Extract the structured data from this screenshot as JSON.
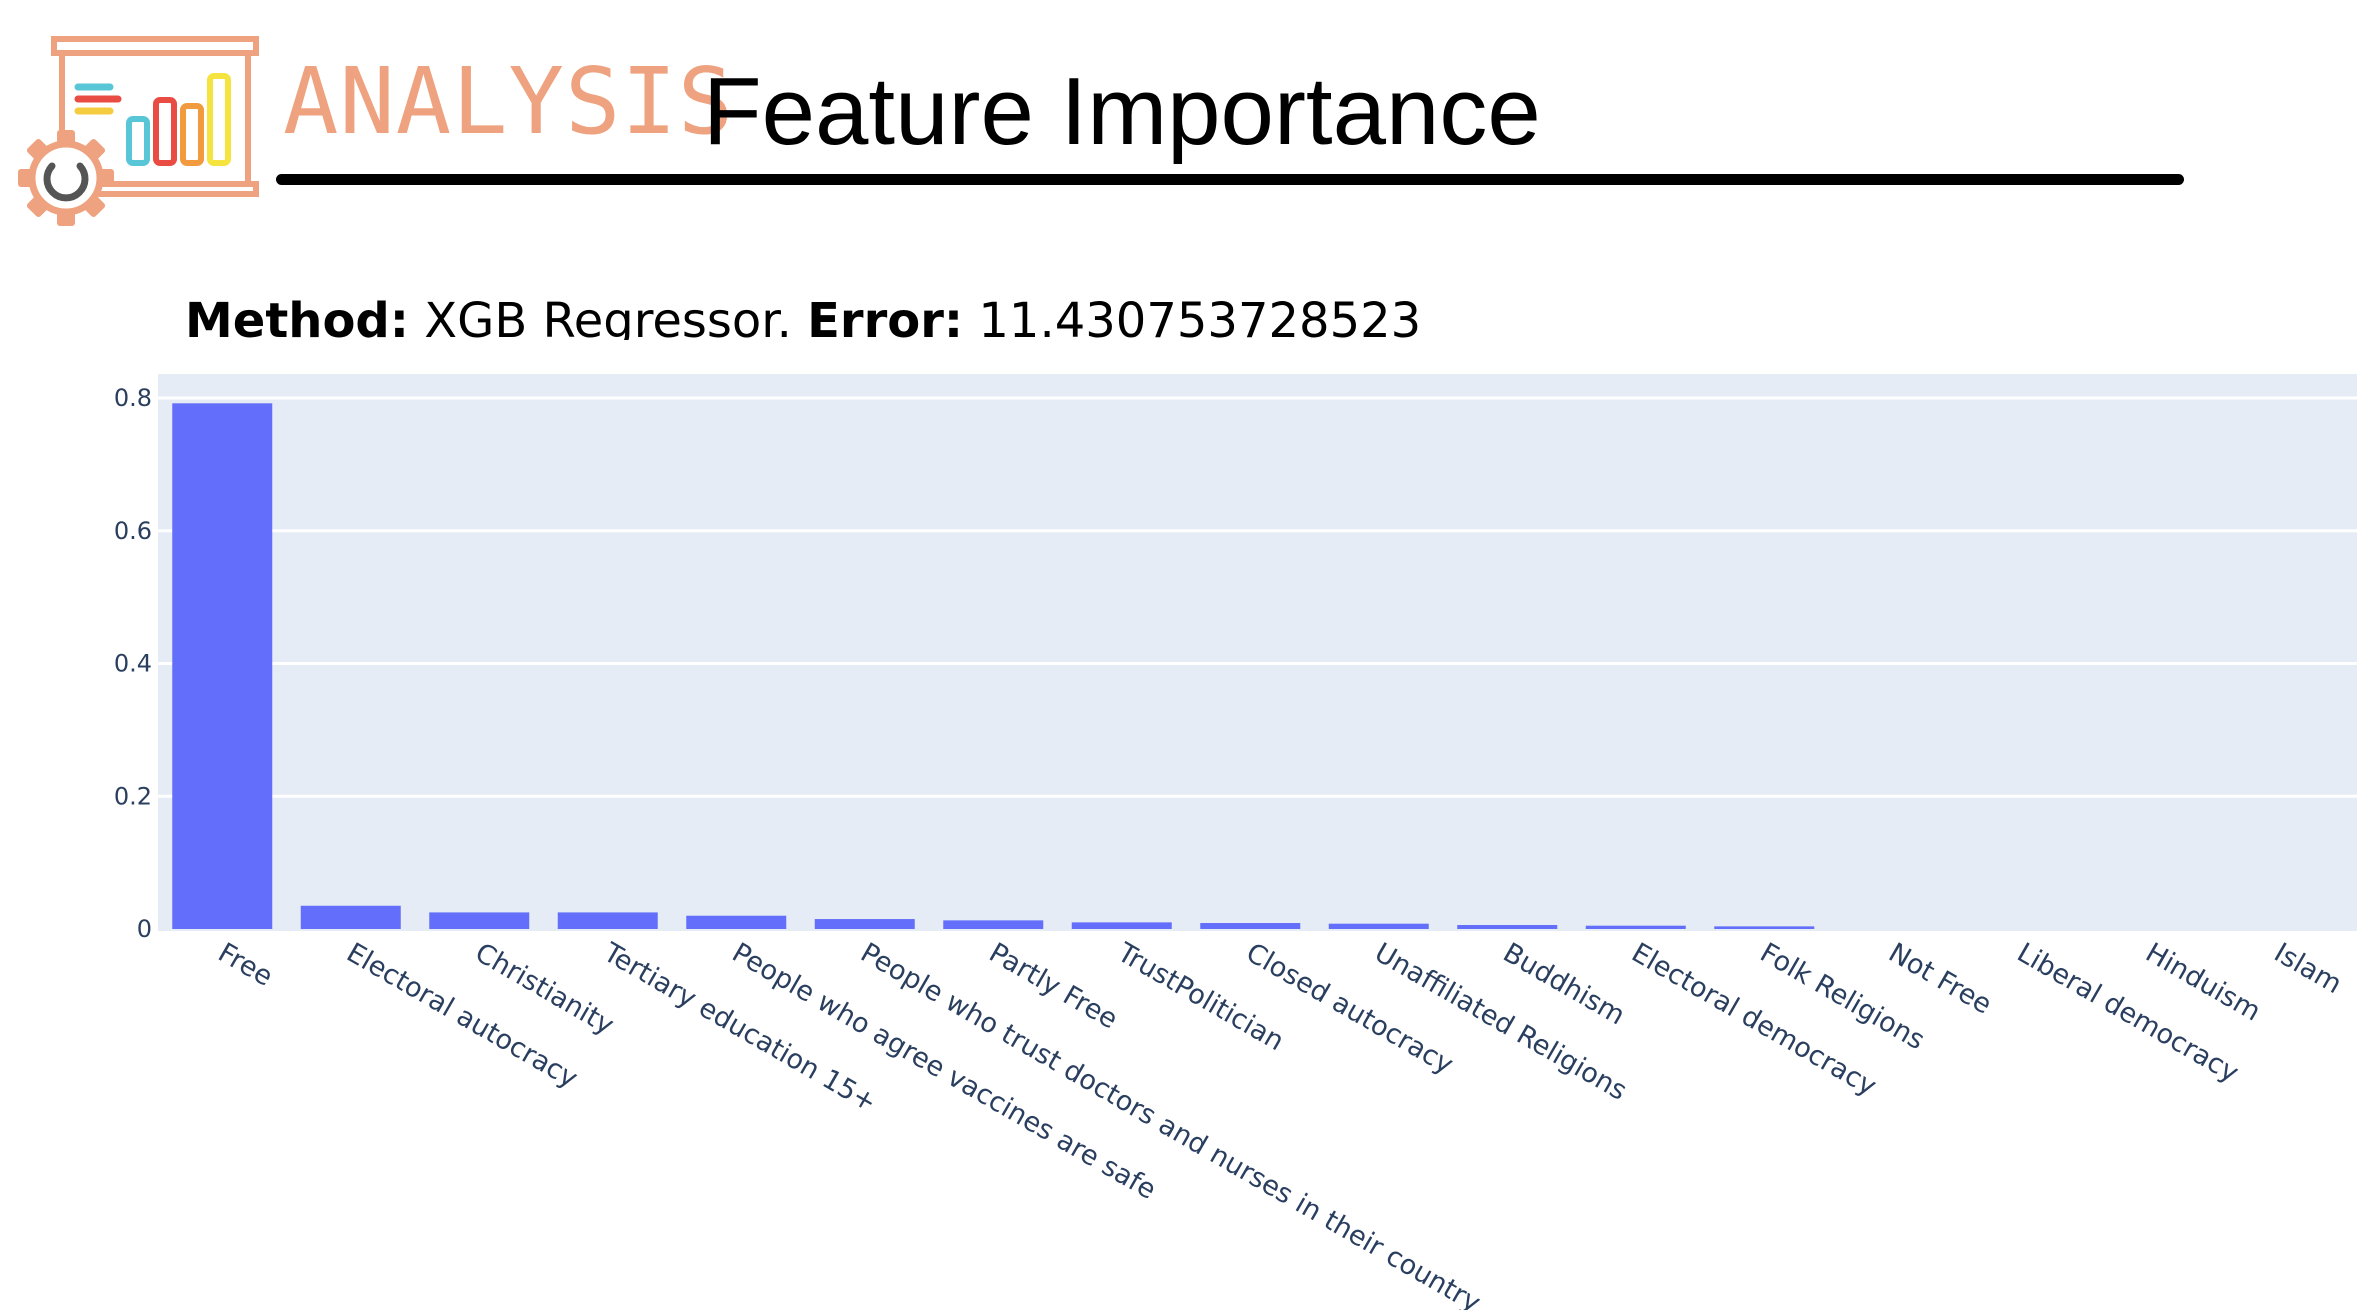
{
  "header": {
    "section_label": "ANALYSIS",
    "title": "Feature Importance",
    "logo_icon": "analysis-chart-gear-icon"
  },
  "subtitle": {
    "method_label": "Method:",
    "method_value": "XGB Regressor.",
    "error_label": "Error:",
    "error_value": "11.430753728523"
  },
  "colors": {
    "bar": "#636efa",
    "plot_background": "#e5ecf6",
    "grid": "#ffffff",
    "tick_text": "#2a3f5f",
    "section_label": "#eea27f"
  },
  "chart_data": {
    "type": "bar",
    "categories": [
      "Free",
      "Electoral autocracy",
      "Christianity",
      "Tertiary education 15+",
      "People who agree vaccines are safe",
      "People who trust doctors and nurses in their country",
      "Partly Free",
      "TrustPolitician",
      "Closed autocracy",
      "Unaffiliated Religions",
      "Buddhism",
      "Electoral democracy",
      "Folk Religions",
      "Not Free",
      "Liberal democracy",
      "Hinduism",
      "Islam"
    ],
    "values": [
      0.792,
      0.035,
      0.025,
      0.025,
      0.02,
      0.015,
      0.013,
      0.01,
      0.009,
      0.008,
      0.006,
      0.005,
      0.004,
      0.0,
      0.0,
      0.0,
      0.0
    ],
    "yticks": [
      0,
      0.2,
      0.4,
      0.6,
      0.8
    ],
    "ytick_labels": [
      "0",
      "0.2",
      "0.4",
      "0.6",
      "0.8"
    ],
    "ylim": [
      0,
      0.835
    ],
    "xlabel": "",
    "ylabel": "",
    "grid": true,
    "legend": "none"
  }
}
